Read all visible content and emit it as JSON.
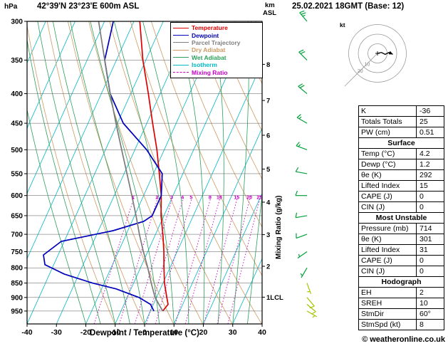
{
  "header": {
    "date_title": "25.02.2021 18GMT (Base: 12)",
    "right_axis_unit_line1": "km",
    "right_axis_unit_line2": "ASL"
  },
  "axes": {
    "mixing_axis_label": "Mixing Ratio (g/kg)"
  },
  "legend": {
    "items": [
      {
        "label": "Temperature",
        "color": "#dd0000",
        "dashed": false
      },
      {
        "label": "Dewpoint",
        "color": "#0000bb",
        "dashed": false
      },
      {
        "label": "Parcel Trajectory",
        "color": "#808080",
        "dashed": false
      },
      {
        "label": "Dry Adiabat",
        "color": "#cf9a63",
        "dashed": false
      },
      {
        "label": "Wet Adiabat",
        "color": "#2ca05a",
        "dashed": false
      },
      {
        "label": "Isotherm",
        "color": "#00b7c4",
        "dashed": false
      },
      {
        "label": "Mixing Ratio",
        "color": "#c400c4",
        "dashed": true
      }
    ]
  },
  "chart_data": {
    "type": "line",
    "subtype": "skew-t-log-p-sounding",
    "title": "42°39'N 23°23'E 600m ASL",
    "xlabel": "Dewpoint / Temperature (°C)",
    "ylabel": "hPa",
    "x_range": [
      -40,
      40
    ],
    "pressure_range_hpa": [
      300,
      1000
    ],
    "pressure_ticks": [
      300,
      350,
      400,
      450,
      500,
      550,
      600,
      650,
      700,
      750,
      800,
      850,
      900,
      950
    ],
    "temp_ticks": [
      -40,
      -30,
      -20,
      -10,
      0,
      10,
      20,
      30,
      40
    ],
    "km_ticks": [
      {
        "label": "8",
        "p": 356
      },
      {
        "label": "7",
        "p": 411
      },
      {
        "label": "6",
        "p": 472
      },
      {
        "label": "5",
        "p": 540
      },
      {
        "label": "4",
        "p": 616
      },
      {
        "label": "3",
        "p": 701
      },
      {
        "label": "2",
        "p": 795
      },
      {
        "label": "1LCL",
        "p": 899
      }
    ],
    "mixing_ratio_lines_g_kg": [
      1,
      2,
      3,
      4,
      5,
      8,
      10,
      15,
      20,
      25
    ],
    "isotherm_step_c": 10,
    "series": [
      {
        "name": "Temperature",
        "color": "#dd0000",
        "points": [
          [
            950,
            4.2
          ],
          [
            925,
            5.0
          ],
          [
            900,
            3.5
          ],
          [
            850,
            0.5
          ],
          [
            800,
            -2.0
          ],
          [
            750,
            -4.5
          ],
          [
            700,
            -7.5
          ],
          [
            650,
            -11.0
          ],
          [
            600,
            -14.0
          ],
          [
            550,
            -18.0
          ],
          [
            500,
            -22.5
          ],
          [
            450,
            -28.0
          ],
          [
            400,
            -34.0
          ],
          [
            350,
            -41.0
          ],
          [
            300,
            -48.0
          ]
        ]
      },
      {
        "name": "Dewpoint",
        "color": "#0000bb",
        "points": [
          [
            950,
            1.2
          ],
          [
            925,
            -1.0
          ],
          [
            900,
            -6.0
          ],
          [
            870,
            -15.0
          ],
          [
            850,
            -24.0
          ],
          [
            820,
            -35.0
          ],
          [
            790,
            -43.0
          ],
          [
            760,
            -45.0
          ],
          [
            720,
            -41.0
          ],
          [
            690,
            -25.0
          ],
          [
            665,
            -16.0
          ],
          [
            650,
            -14.0
          ],
          [
            600,
            -14.0
          ],
          [
            550,
            -17.0
          ],
          [
            500,
            -26.0
          ],
          [
            450,
            -38.0
          ],
          [
            400,
            -47.0
          ],
          [
            350,
            -54.0
          ],
          [
            300,
            -57.0
          ]
        ]
      },
      {
        "name": "Parcel Trajectory",
        "color": "#7a7a7a",
        "points": [
          [
            950,
            4.2
          ],
          [
            900,
            -0.5
          ],
          [
            850,
            -4.0
          ],
          [
            800,
            -7.5
          ],
          [
            750,
            -11.5
          ],
          [
            700,
            -15.5
          ],
          [
            650,
            -19.5
          ],
          [
            600,
            -24.0
          ],
          [
            550,
            -29.0
          ],
          [
            500,
            -34.5
          ],
          [
            450,
            -40.5
          ],
          [
            400,
            -47.0
          ],
          [
            350,
            -54.0
          ],
          [
            300,
            -62.0
          ]
        ]
      }
    ],
    "wind_barbs": [
      {
        "p": 300,
        "dir": 320,
        "kt": 25
      },
      {
        "p": 350,
        "dir": 315,
        "kt": 20
      },
      {
        "p": 400,
        "dir": 310,
        "kt": 20
      },
      {
        "p": 450,
        "dir": 300,
        "kt": 15
      },
      {
        "p": 500,
        "dir": 290,
        "kt": 15
      },
      {
        "p": 550,
        "dir": 280,
        "kt": 10
      },
      {
        "p": 600,
        "dir": 270,
        "kt": 10
      },
      {
        "p": 650,
        "dir": 260,
        "kt": 10
      },
      {
        "p": 700,
        "dir": 250,
        "kt": 10
      },
      {
        "p": 750,
        "dir": 235,
        "kt": 5
      },
      {
        "p": 800,
        "dir": 210,
        "kt": 5
      },
      {
        "p": 850,
        "dir": 160,
        "kt": 5
      },
      {
        "p": 900,
        "dir": 140,
        "kt": 10
      },
      {
        "p": 925,
        "dir": 130,
        "kt": 10
      },
      {
        "p": 950,
        "dir": 120,
        "kt": 5
      }
    ],
    "colors": {
      "isotherm": "#00b7c4",
      "dry_adiabat": "#cf9a63",
      "wet_adiabat": "#2ca05a",
      "mixing_ratio": "#c400c4",
      "grid": "#555555"
    }
  },
  "hodograph": {
    "unit_label": "kt",
    "rings_kt": [
      10,
      20,
      30
    ],
    "ring_label_values": [
      "10",
      "20"
    ],
    "trace_kt": [
      [
        0,
        0
      ],
      [
        4,
        1
      ],
      [
        8,
        -1
      ],
      [
        12,
        1
      ],
      [
        16,
        -1
      ]
    ],
    "storm_dir": "60°",
    "storm_speed_kt": "8"
  },
  "table": {
    "sections": [
      {
        "title": "",
        "rows": [
          [
            "K",
            "-36"
          ],
          [
            "Totals Totals",
            "25"
          ],
          [
            "PW (cm)",
            "0.51"
          ]
        ]
      },
      {
        "title": "Surface",
        "rows": [
          [
            "Temp (°C)",
            "4.2"
          ],
          [
            "Dewp (°C)",
            "1.2"
          ],
          [
            "θe (K)",
            "292"
          ],
          [
            "Lifted Index",
            "15"
          ],
          [
            "CAPE (J)",
            "0"
          ],
          [
            "CIN (J)",
            "0"
          ]
        ]
      },
      {
        "title": "Most Unstable",
        "rows": [
          [
            "Pressure (mb)",
            "714"
          ],
          [
            "θe (K)",
            "301"
          ],
          [
            "Lifted Index",
            "31"
          ],
          [
            "CAPE (J)",
            "0"
          ],
          [
            "CIN (J)",
            "0"
          ]
        ]
      },
      {
        "title": "Hodograph",
        "rows": [
          [
            "EH",
            "2"
          ],
          [
            "SREH",
            "10"
          ],
          [
            "StmDir",
            "60°"
          ],
          [
            "StmSpd (kt)",
            "8"
          ]
        ]
      }
    ]
  },
  "footer": {
    "credit": "© weatheronline.co.uk"
  }
}
